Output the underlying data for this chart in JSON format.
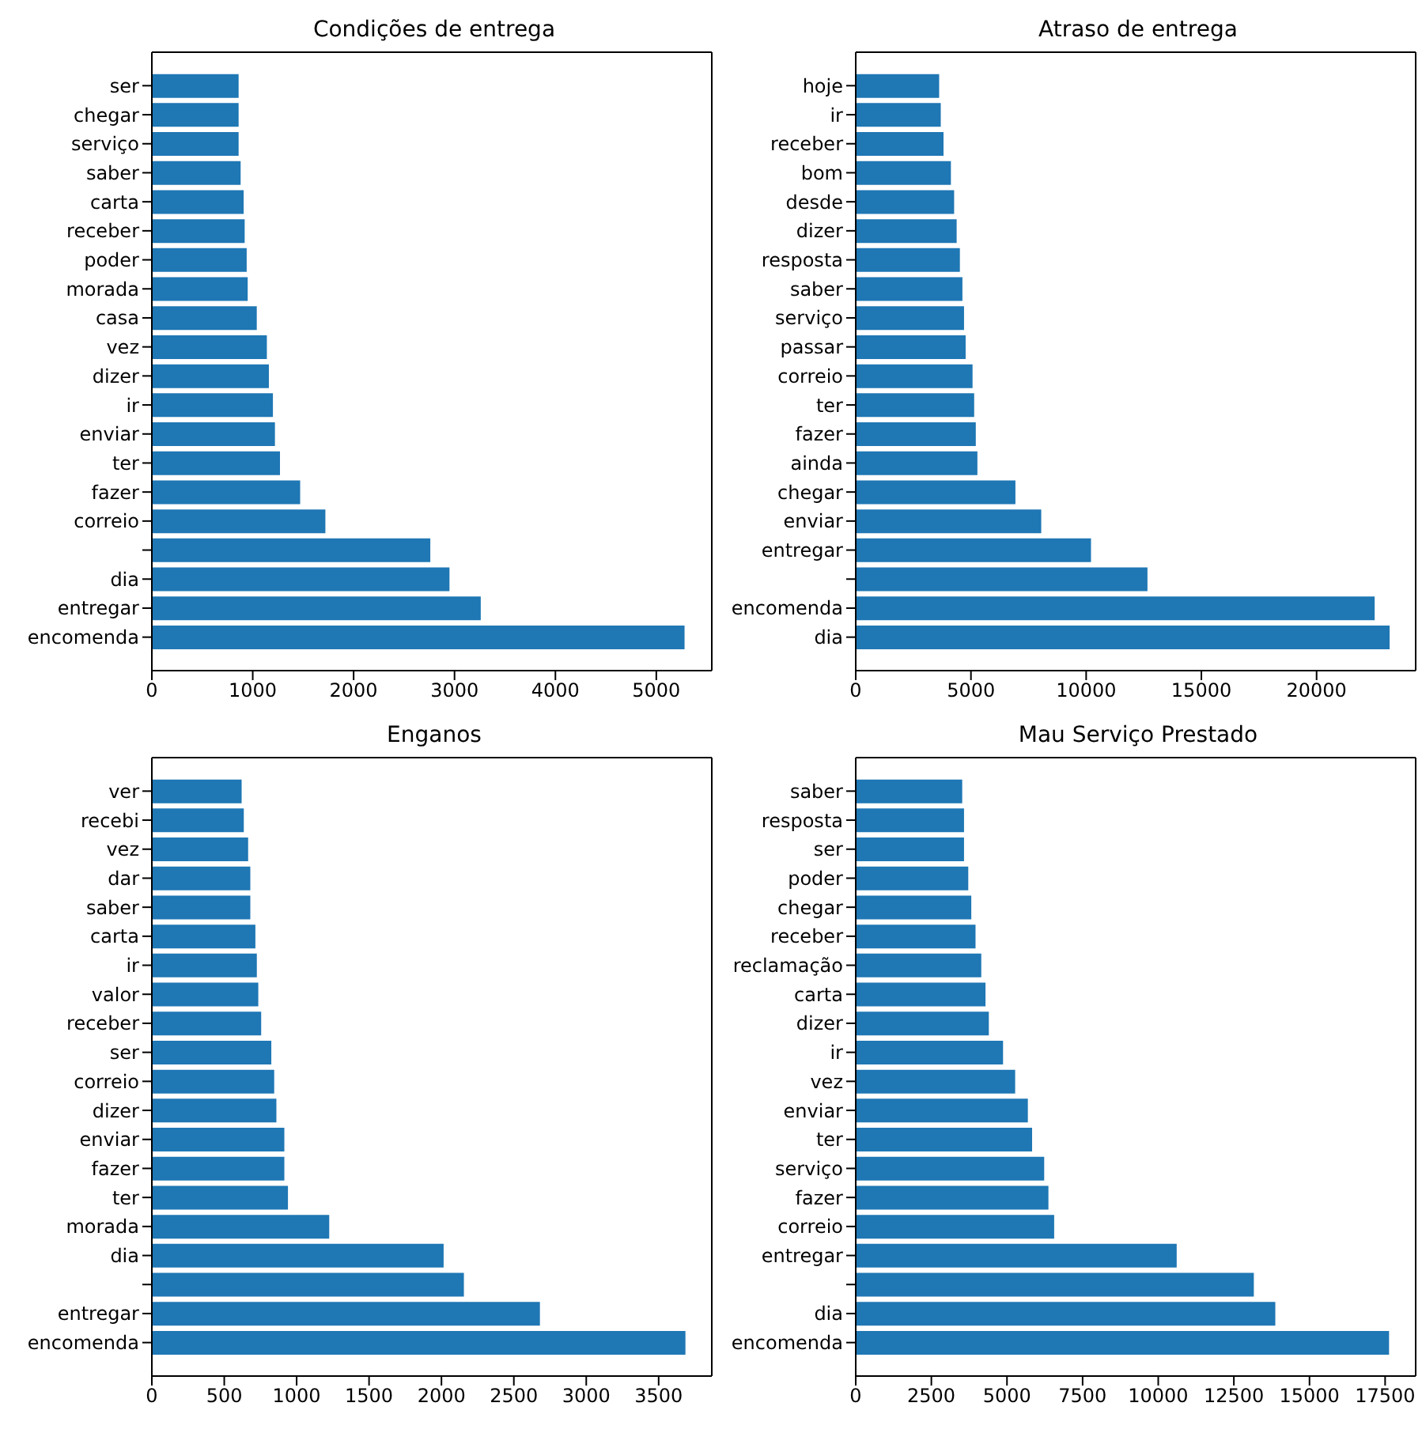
{
  "chart_data": [
    {
      "type": "bar",
      "orientation": "horizontal",
      "title": "Condições de entrega",
      "color": "#1f77b4",
      "categories": [
        "ser",
        "chegar",
        "serviço",
        "saber",
        "carta",
        "receber",
        "poder",
        "morada",
        "casa",
        "vez",
        "dizer",
        "ir",
        "enviar",
        "ter",
        "fazer",
        "correio",
        null,
        "dia",
        "entregar",
        "encomenda"
      ],
      "values": [
        860,
        860,
        860,
        880,
        910,
        920,
        940,
        950,
        1040,
        1140,
        1160,
        1200,
        1220,
        1270,
        1470,
        1720,
        2760,
        2950,
        3260,
        5280
      ],
      "xlim": [
        0,
        5550
      ],
      "xticks": [
        0,
        1000,
        2000,
        3000,
        4000,
        5000
      ]
    },
    {
      "type": "bar",
      "orientation": "horizontal",
      "title": "Atraso de entrega",
      "color": "#1f77b4",
      "categories": [
        "hoje",
        "ir",
        "receber",
        "bom",
        "desde",
        "dizer",
        "resposta",
        "saber",
        "serviço",
        "passar",
        "correio",
        "ter",
        "fazer",
        "ainda",
        "chegar",
        "enviar",
        "entregar",
        null,
        "encomenda",
        "dia"
      ],
      "values": [
        3620,
        3690,
        3810,
        4130,
        4270,
        4380,
        4520,
        4630,
        4700,
        4770,
        5070,
        5140,
        5210,
        5280,
        6930,
        8050,
        10210,
        12660,
        22520,
        23170
      ],
      "xlim": [
        0,
        24300
      ],
      "xticks": [
        0,
        5000,
        10000,
        15000,
        20000
      ]
    },
    {
      "type": "bar",
      "orientation": "horizontal",
      "title": "Enganos",
      "color": "#1f77b4",
      "categories": [
        "ver",
        "recebi",
        "vez",
        "dar",
        "saber",
        "carta",
        "ir",
        "valor",
        "receber",
        "ser",
        "correio",
        "dizer",
        "enviar",
        "fazer",
        "ter",
        "morada",
        "dia",
        null,
        "entregar",
        "encomenda"
      ],
      "values": [
        620,
        635,
        665,
        680,
        680,
        715,
        725,
        735,
        755,
        825,
        845,
        860,
        915,
        915,
        940,
        1225,
        2015,
        2155,
        2680,
        3685
      ],
      "xlim": [
        0,
        3867
      ],
      "xticks": [
        0,
        500,
        1000,
        1500,
        2000,
        2500,
        3000,
        3500
      ]
    },
    {
      "type": "bar",
      "orientation": "horizontal",
      "title": "Mau Serviço Prestado",
      "color": "#1f77b4",
      "categories": [
        "saber",
        "resposta",
        "ser",
        "poder",
        "chegar",
        "receber",
        "reclamação",
        "carta",
        "dizer",
        "ir",
        "vez",
        "enviar",
        "ter",
        "serviço",
        "fazer",
        "correio",
        "entregar",
        null,
        "dia",
        "encomenda"
      ],
      "values": [
        3520,
        3580,
        3580,
        3720,
        3820,
        3960,
        4150,
        4290,
        4400,
        4870,
        5270,
        5690,
        5830,
        6230,
        6370,
        6560,
        10610,
        13160,
        13870,
        17630
      ],
      "xlim": [
        0,
        18510
      ],
      "xticks": [
        0,
        2500,
        5000,
        7500,
        10000,
        12500,
        15000,
        17500
      ]
    }
  ]
}
